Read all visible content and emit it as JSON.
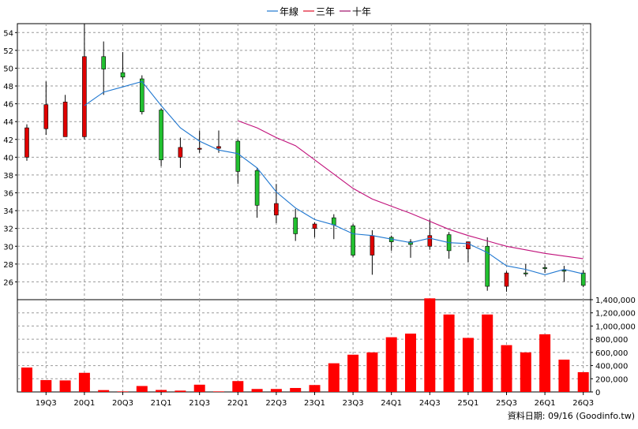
{
  "legend": {
    "items": [
      {
        "label": "年線",
        "color": "#1f77d0"
      },
      {
        "label": "三年",
        "color": "#e0102a"
      },
      {
        "label": "十年",
        "color": "#a0106a"
      }
    ]
  },
  "footer": {
    "caption": "資料日期: 09/16  (Goodinfo.tw)"
  },
  "colors": {
    "up": "#e00000",
    "down": "#22c030",
    "volume": "#ff0000",
    "ma1": "#1f77d0",
    "ma3": "#e0102a",
    "ma10": "#c0107a"
  },
  "chart_data": [
    {
      "type": "candlestick",
      "name": "price",
      "ylim": [
        24,
        55
      ],
      "yticks": [
        26,
        28,
        30,
        32,
        34,
        36,
        38,
        40,
        42,
        44,
        46,
        48,
        50,
        52,
        54
      ],
      "xticks": [
        "19Q3",
        "20Q1",
        "20Q3",
        "21Q1",
        "21Q3",
        "22Q1",
        "22Q3",
        "23Q1",
        "23Q3",
        "24Q1",
        "24Q3",
        "25Q1",
        "25Q3",
        "26Q1",
        "26Q3"
      ],
      "periods": [
        "19Q2",
        "19Q3",
        "19Q4",
        "20Q1",
        "20Q2",
        "20Q3",
        "20Q4",
        "21Q1",
        "21Q2",
        "21Q3",
        "21Q4",
        "22Q1",
        "22Q2",
        "22Q3",
        "22Q4",
        "23Q1",
        "23Q2",
        "23Q3",
        "23Q4",
        "24Q1",
        "24Q2",
        "24Q3",
        "24Q4",
        "25Q1",
        "25Q2",
        "25Q3",
        "25Q4",
        "26Q1",
        "26Q2",
        "26Q3"
      ],
      "open": [
        40.0,
        43.2,
        42.3,
        42.3,
        51.3,
        49.5,
        48.8,
        45.3,
        40.0,
        41.0,
        41.0,
        41.8,
        38.5,
        33.5,
        33.2,
        32.0,
        33.2,
        32.3,
        29.0,
        31.0,
        30.5,
        30.0,
        31.3,
        29.7,
        30.0,
        25.5,
        27.0,
        27.6,
        27.3,
        27.0
      ],
      "high": [
        43.7,
        48.5,
        47.0,
        55.0,
        53.0,
        51.8,
        49.2,
        45.5,
        42.2,
        43.0,
        43.0,
        42.0,
        38.8,
        37.0,
        34.2,
        32.7,
        33.6,
        32.5,
        31.8,
        31.2,
        30.8,
        33.0,
        31.6,
        30.3,
        31.0,
        27.2,
        28.0,
        28.0,
        27.8,
        27.3
      ],
      "low": [
        39.6,
        42.5,
        42.3,
        42.0,
        47.0,
        48.7,
        44.8,
        39.0,
        38.8,
        40.5,
        40.5,
        37.0,
        33.2,
        32.6,
        30.6,
        31.0,
        30.8,
        28.8,
        26.8,
        29.5,
        28.7,
        29.6,
        28.6,
        28.2,
        25.0,
        24.9,
        26.6,
        27.0,
        26.0,
        25.4
      ],
      "close": [
        43.3,
        45.9,
        46.2,
        51.3,
        49.9,
        49.0,
        45.1,
        39.7,
        41.1,
        41.0,
        41.2,
        38.4,
        34.6,
        34.8,
        31.4,
        32.5,
        32.4,
        29.0,
        31.2,
        30.5,
        30.2,
        31.2,
        29.5,
        30.5,
        25.5,
        27.0,
        26.9,
        27.5,
        27.2,
        25.6
      ],
      "ma_year": [
        null,
        null,
        null,
        45.8,
        47.3,
        47.9,
        48.5,
        45.8,
        43.3,
        41.8,
        40.8,
        40.4,
        38.8,
        36.1,
        34.3,
        33.0,
        32.4,
        31.4,
        31.2,
        30.8,
        30.4,
        30.9,
        30.4,
        30.3,
        29.3,
        27.8,
        27.4,
        26.8,
        27.4,
        26.9
      ],
      "ma_3y": [
        null,
        null,
        null,
        null,
        null,
        null,
        null,
        null,
        null,
        null,
        null,
        44.1,
        43.3,
        42.2,
        41.3,
        39.7,
        38.1,
        36.5,
        35.3,
        34.5,
        33.7,
        32.8,
        31.9,
        31.2,
        30.6,
        30.0,
        29.6,
        29.2,
        28.9,
        28.6
      ]
    },
    {
      "type": "bar",
      "name": "volume",
      "ylim": [
        0,
        1400000
      ],
      "yticks": [
        0,
        200000,
        400000,
        600000,
        800000,
        1000000,
        1200000,
        1400000
      ],
      "ytick_labels": [
        "0",
        "200,000",
        "400,000",
        "600,000",
        "800,000",
        "1,000,000",
        "1,200,000",
        "1,400,000"
      ],
      "values": [
        370000,
        180000,
        175000,
        290000,
        28000,
        8000,
        90000,
        30000,
        20000,
        110000,
        8000,
        165000,
        45000,
        45000,
        60000,
        105000,
        435000,
        565000,
        600000,
        830000,
        885000,
        1420000,
        1175000,
        820000,
        1175000,
        710000,
        600000,
        875000,
        490000,
        300000
      ]
    }
  ]
}
